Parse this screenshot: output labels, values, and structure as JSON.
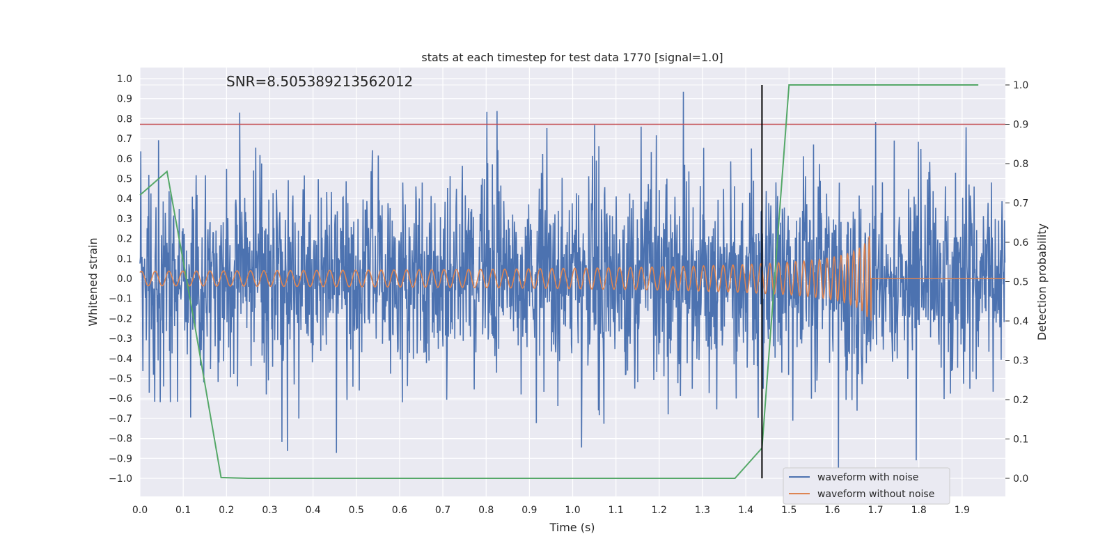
{
  "chart_data": {
    "type": "line",
    "title": "stats at each timestep for test data 1770 [signal=1.0]",
    "xlabel": "Time (s)",
    "ylabel": "Whitened strain",
    "y2label": "Detection probability",
    "annotation": "SNR=8.505389213562012",
    "xlim": [
      0.0,
      2.0
    ],
    "ylim": [
      -1.1,
      1.1
    ],
    "y2lim": [
      -0.05,
      1.03
    ],
    "x_ticks": [
      0.0,
      0.1,
      0.2,
      0.3,
      0.4,
      0.5,
      0.6,
      0.7,
      0.8,
      0.9,
      1.0,
      1.1,
      1.2,
      1.3,
      1.4,
      1.5,
      1.6,
      1.7,
      1.8,
      1.9
    ],
    "x_tick_labels": [
      "0.0",
      "0.1",
      "0.2",
      "0.3",
      "0.4",
      "0.5",
      "0.6",
      "0.7",
      "0.8",
      "0.9",
      "1.0",
      "1.1",
      "1.2",
      "1.3",
      "1.4",
      "1.5",
      "1.6",
      "1.7",
      "1.8",
      "1.9"
    ],
    "y_ticks": [
      1.0,
      0.9,
      0.8,
      0.7,
      0.6,
      0.5,
      0.4,
      0.3,
      0.2,
      0.1,
      0.0,
      -0.1,
      -0.2,
      -0.3,
      -0.4,
      -0.5,
      -0.6,
      -0.7,
      -0.8,
      -0.9,
      -1.0
    ],
    "y_tick_labels": [
      "1.0",
      "0.9",
      "0.8",
      "0.7",
      "0.6",
      "0.5",
      "0.4",
      "0.3",
      "0.2",
      "0.1",
      "0.0",
      "−0.1",
      "−0.2",
      "−0.3",
      "−0.4",
      "−0.5",
      "−0.6",
      "−0.7",
      "−0.8",
      "−0.9",
      "−1.0"
    ],
    "y2_ticks": [
      1.0,
      0.9,
      0.8,
      0.7,
      0.6,
      0.5,
      0.4,
      0.3,
      0.2,
      0.1,
      0.0
    ],
    "y2_tick_labels": [
      "1.0",
      "0.9",
      "0.8",
      "0.7",
      "0.6",
      "0.5",
      "0.4",
      "0.3",
      "0.2",
      "0.1",
      "0.0"
    ],
    "grid": true,
    "legend_position": "lower-right",
    "series": [
      {
        "name": "waveform with noise",
        "color": "#4c72b0",
        "axis": "left",
        "kind": "noisy-strain",
        "amplitude_std": 0.25
      },
      {
        "name": "waveform without noise",
        "color": "#dd8452",
        "axis": "left",
        "kind": "chirp",
        "merger_time": 1.69,
        "start_amplitude": 0.035,
        "peak_amplitude": 0.3
      },
      {
        "name": "",
        "color": "#55a868",
        "axis": "right",
        "kind": "probability",
        "x": [
          0.0,
          0.0625,
          0.125,
          0.1875,
          0.25,
          0.3125,
          0.375,
          0.4375,
          0.5,
          0.5625,
          0.625,
          0.6875,
          0.75,
          0.8125,
          0.875,
          0.9375,
          1.0,
          1.0625,
          1.125,
          1.1875,
          1.25,
          1.3125,
          1.375,
          1.4375,
          1.5,
          1.5625,
          1.625,
          1.6875,
          1.75,
          1.8125,
          1.875,
          1.9375
        ],
        "y": [
          0.72,
          0.78,
          0.4,
          0.002,
          0.0,
          0.0,
          0.0,
          0.0,
          0.0,
          0.0,
          0.0,
          0.0,
          0.0,
          0.0,
          0.0,
          0.0,
          0.0,
          0.0,
          0.0,
          0.0,
          0.0,
          0.0,
          0.0,
          0.077,
          1.0,
          1.0,
          1.0,
          1.0,
          1.0,
          1.0,
          1.0,
          1.0
        ]
      }
    ],
    "threshold_line": {
      "axis": "right",
      "value": 0.9,
      "color": "#c44e52"
    },
    "vertical_line": {
      "x": 1.4375,
      "color": "#000000"
    }
  }
}
